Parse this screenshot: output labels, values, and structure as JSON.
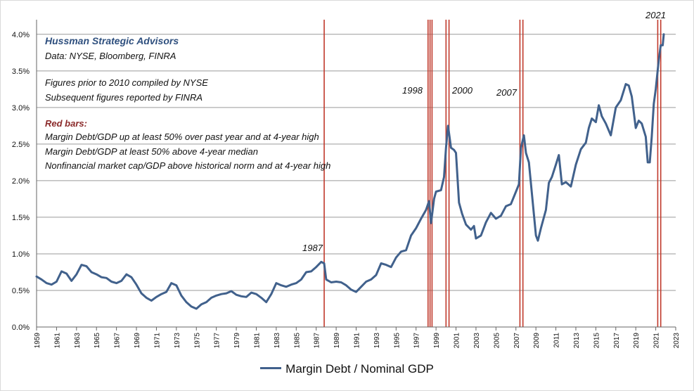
{
  "chart_data": {
    "type": "line",
    "title": "",
    "xlabel": "",
    "ylabel": "",
    "xlim": [
      1959,
      2023
    ],
    "ylim": [
      0,
      0.042
    ],
    "y_ticks": [
      0,
      0.005,
      0.01,
      0.015,
      0.02,
      0.025,
      0.03,
      0.035,
      0.04
    ],
    "y_tick_labels": [
      "0.0%",
      "0.5%",
      "1.0%",
      "1.5%",
      "2.0%",
      "2.5%",
      "3.0%",
      "3.5%",
      "4.0%"
    ],
    "x_tick_labels": [
      "1959",
      "1961",
      "1963",
      "1965",
      "1967",
      "1969",
      "1971",
      "1973",
      "1975",
      "1977",
      "1979",
      "1981",
      "1983",
      "1985",
      "1987",
      "1989",
      "1991",
      "1993",
      "1995",
      "1997",
      "1999",
      "2001",
      "2003",
      "2005",
      "2007",
      "2009",
      "2011",
      "2013",
      "2015",
      "2017",
      "2019",
      "2021",
      "2023"
    ],
    "grid": true,
    "legend": "bottom-center",
    "series": [
      {
        "name": "Margin Debt / Nominal GDP",
        "color": "#41618c",
        "x": [
          1959.0,
          1959.5,
          1960.0,
          1960.5,
          1961.0,
          1961.5,
          1962.0,
          1962.5,
          1963.0,
          1963.5,
          1964.0,
          1964.5,
          1965.0,
          1965.5,
          1966.0,
          1966.5,
          1967.0,
          1967.5,
          1968.0,
          1968.5,
          1969.0,
          1969.5,
          1970.0,
          1970.5,
          1971.0,
          1971.5,
          1972.0,
          1972.5,
          1973.0,
          1973.5,
          1974.0,
          1974.5,
          1975.0,
          1975.5,
          1976.0,
          1976.5,
          1977.0,
          1977.5,
          1978.0,
          1978.5,
          1979.0,
          1979.5,
          1980.0,
          1980.5,
          1981.0,
          1981.5,
          1982.0,
          1982.5,
          1983.0,
          1983.5,
          1984.0,
          1984.5,
          1985.0,
          1985.5,
          1986.0,
          1986.5,
          1987.0,
          1987.5,
          1987.8,
          1988.0,
          1988.5,
          1989.0,
          1989.5,
          1990.0,
          1990.5,
          1991.0,
          1991.5,
          1992.0,
          1992.5,
          1993.0,
          1993.5,
          1994.0,
          1994.5,
          1995.0,
          1995.5,
          1996.0,
          1996.5,
          1997.0,
          1997.5,
          1998.0,
          1998.3,
          1998.5,
          1998.8,
          1999.0,
          1999.5,
          1999.8,
          2000.0,
          2000.2,
          2000.5,
          2000.8,
          2001.0,
          2001.3,
          2001.6,
          2002.0,
          2002.5,
          2002.8,
          2003.0,
          2003.5,
          2004.0,
          2004.5,
          2005.0,
          2005.5,
          2006.0,
          2006.5,
          2007.0,
          2007.3,
          2007.5,
          2007.8,
          2008.0,
          2008.3,
          2008.6,
          2009.0,
          2009.2,
          2009.5,
          2010.0,
          2010.3,
          2010.6,
          2011.0,
          2011.3,
          2011.6,
          2012.0,
          2012.5,
          2013.0,
          2013.5,
          2014.0,
          2014.3,
          2014.6,
          2015.0,
          2015.3,
          2015.6,
          2016.0,
          2016.5,
          2017.0,
          2017.5,
          2018.0,
          2018.3,
          2018.6,
          2019.0,
          2019.3,
          2019.6,
          2020.0,
          2020.2,
          2020.4,
          2020.6,
          2020.8,
          2021.0,
          2021.3,
          2021.5,
          2021.7,
          2021.8
        ],
        "values": [
          0.0069,
          0.0065,
          0.006,
          0.0058,
          0.0062,
          0.0076,
          0.0073,
          0.0063,
          0.0072,
          0.0085,
          0.0083,
          0.0075,
          0.0072,
          0.0068,
          0.0067,
          0.0062,
          0.006,
          0.0063,
          0.0072,
          0.0068,
          0.0058,
          0.0046,
          0.004,
          0.0036,
          0.0041,
          0.0045,
          0.0048,
          0.006,
          0.0057,
          0.0043,
          0.0034,
          0.0028,
          0.0025,
          0.0031,
          0.0034,
          0.004,
          0.0043,
          0.0045,
          0.0046,
          0.0049,
          0.0044,
          0.0042,
          0.0041,
          0.0047,
          0.0045,
          0.004,
          0.0034,
          0.0045,
          0.006,
          0.0057,
          0.0055,
          0.0058,
          0.006,
          0.0065,
          0.0075,
          0.0076,
          0.0082,
          0.0089,
          0.0087,
          0.0065,
          0.0061,
          0.0062,
          0.0061,
          0.0057,
          0.0051,
          0.0048,
          0.0055,
          0.0062,
          0.0065,
          0.0071,
          0.0087,
          0.0085,
          0.0082,
          0.0095,
          0.0103,
          0.0105,
          0.0125,
          0.0135,
          0.0148,
          0.016,
          0.0172,
          0.0142,
          0.0175,
          0.0185,
          0.0187,
          0.0205,
          0.0245,
          0.0275,
          0.0245,
          0.0242,
          0.0238,
          0.017,
          0.0155,
          0.014,
          0.0133,
          0.0138,
          0.0121,
          0.0125,
          0.0143,
          0.0156,
          0.0148,
          0.0152,
          0.0165,
          0.0168,
          0.0185,
          0.0195,
          0.0245,
          0.0262,
          0.0238,
          0.0225,
          0.0182,
          0.0125,
          0.0118,
          0.0135,
          0.016,
          0.0197,
          0.0205,
          0.0222,
          0.0235,
          0.0195,
          0.0198,
          0.0192,
          0.0222,
          0.0243,
          0.0252,
          0.0272,
          0.0285,
          0.028,
          0.0303,
          0.0288,
          0.0278,
          0.0262,
          0.03,
          0.031,
          0.0332,
          0.033,
          0.0315,
          0.0272,
          0.0282,
          0.0278,
          0.026,
          0.0225,
          0.0225,
          0.026,
          0.0305,
          0.0325,
          0.0365,
          0.0385,
          0.0385,
          0.04
        ]
      }
    ],
    "red_bars": [
      1987.8,
      1998.2,
      1998.4,
      1998.6,
      2000.0,
      2000.3,
      2007.4,
      2007.7,
      2021.2,
      2021.5
    ],
    "annotations": {
      "title": "Hussman Strategic Advisors",
      "source": "Data: NYSE, Bloomberg, FINRA",
      "note1": "Figures prior to 2010 compiled by NYSE",
      "note2": "Subsequent figures reported by FINRA",
      "red_bars_heading": "Red bars:",
      "red_bars_1": "Margin Debt/GDP up at least 50% over past year and at 4-year high",
      "red_bars_2": "Margin Debt/GDP at least 50% above 4-year median",
      "red_bars_3": "Nonfinancial market cap/GDP above historical norm and at 4-year high",
      "label_1987": "1987",
      "label_1998": "1998",
      "label_2000": "2000",
      "label_2007": "2007",
      "label_2021": "2021"
    },
    "legend_label": "Margin Debt / Nominal GDP"
  }
}
